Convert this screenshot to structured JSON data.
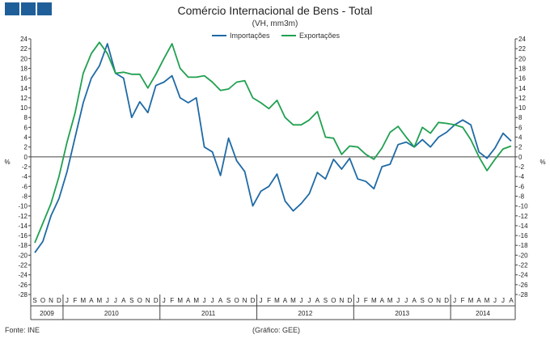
{
  "header": {
    "title": "Comércio Internacional de Bens - Total",
    "subtitle": "(VH, mm3m)",
    "logo_color": "#1f5f99"
  },
  "legend": {
    "items": [
      {
        "label": "Importações",
        "color": "#1f6aa5"
      },
      {
        "label": "Exportações",
        "color": "#20a050"
      }
    ]
  },
  "footer": {
    "source": "Fonte:  INE",
    "credit": "(Gráfico:  GEE)"
  },
  "chart_data": {
    "type": "line",
    "y_unit": "%",
    "ylim": [
      -28,
      24
    ],
    "ytick_step": 2,
    "grid": false,
    "legend_position": "top-center",
    "month_labels": [
      "S",
      "O",
      "N",
      "D",
      "J",
      "F",
      "M",
      "A",
      "M",
      "J",
      "J",
      "A",
      "S",
      "O",
      "N",
      "D",
      "J",
      "F",
      "M",
      "A",
      "M",
      "J",
      "J",
      "A",
      "S",
      "O",
      "N",
      "D",
      "J",
      "F",
      "M",
      "A",
      "M",
      "J",
      "J",
      "A",
      "S",
      "O",
      "N",
      "D",
      "J",
      "F",
      "M",
      "A",
      "M",
      "J",
      "J",
      "A",
      "S",
      "O",
      "N",
      "D",
      "J",
      "F",
      "M",
      "A",
      "M",
      "J",
      "J",
      "A"
    ],
    "years": [
      {
        "label": "2009",
        "months": 4
      },
      {
        "label": "2010",
        "months": 12
      },
      {
        "label": "2011",
        "months": 12
      },
      {
        "label": "2012",
        "months": 12
      },
      {
        "label": "2013",
        "months": 12
      },
      {
        "label": "2014",
        "months": 8
      }
    ],
    "series": [
      {
        "name": "Importações",
        "color": "#1f6aa5",
        "values": [
          -19.5,
          -17.2,
          -12,
          -8.5,
          -3,
          4,
          11,
          16,
          18.5,
          23,
          17,
          16,
          8,
          11.2,
          9,
          14.5,
          15.2,
          16.5,
          12,
          11,
          12,
          2,
          1,
          -3.8,
          3.8,
          -0.8,
          -3,
          -10,
          -7,
          -6,
          -3.5,
          -9,
          -11,
          -9.5,
          -7.5,
          -3.2,
          -4.5,
          -0.5,
          -2.5,
          -0.3,
          -4.5,
          -5,
          -6.5,
          -2,
          -1.5,
          2.5,
          3,
          2,
          3.5,
          2,
          4,
          5,
          6.5,
          7.5,
          6.5,
          1,
          -0.3,
          1.8,
          4.8,
          3.2
        ]
      },
      {
        "name": "Exportações",
        "color": "#20a050",
        "values": [
          -17.5,
          -13.5,
          -9.5,
          -4,
          3,
          9,
          17,
          21,
          23.3,
          21,
          17,
          17.2,
          16.8,
          16.8,
          14,
          16.8,
          20,
          23,
          18,
          16.2,
          16.2,
          16.5,
          15.2,
          13.5,
          13.8,
          15.2,
          15.5,
          12,
          11,
          9.8,
          11.5,
          8,
          6.5,
          6.5,
          7.5,
          9.2,
          4,
          3.8,
          0.5,
          2.2,
          2,
          0.5,
          -0.5,
          1.8,
          5,
          6.2,
          4,
          2,
          6,
          4.8,
          7,
          6.8,
          6.5,
          6,
          3.5,
          0,
          -2.8,
          -0.5,
          1.6,
          2.2
        ]
      }
    ]
  }
}
